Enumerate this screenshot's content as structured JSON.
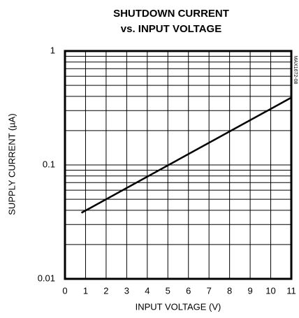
{
  "chart_data": {
    "type": "line",
    "title": "SHUTDOWN CURRENT",
    "subtitle": "vs. INPUT VOLTAGE",
    "annotation": "MAX1672-08",
    "x_label": "INPUT VOLTAGE (V)",
    "y_label": "SUPPLY CURRENT (µA)",
    "x": [
      0.8,
      11
    ],
    "values": [
      0.038,
      0.39
    ],
    "color": "#000000",
    "xlim": [
      0,
      11
    ],
    "xticks": [
      0,
      1,
      2,
      3,
      4,
      5,
      6,
      7,
      8,
      9,
      10,
      11
    ],
    "ylim": [
      0.01,
      1
    ],
    "yticks": [
      0.01,
      0.1,
      1
    ],
    "y_minor_ticks": [
      0.02,
      0.03,
      0.04,
      0.05,
      0.06,
      0.07,
      0.08,
      0.09,
      0.2,
      0.3,
      0.4,
      0.5,
      0.6,
      0.7,
      0.8,
      0.9
    ],
    "y_log": true,
    "grid": true
  }
}
